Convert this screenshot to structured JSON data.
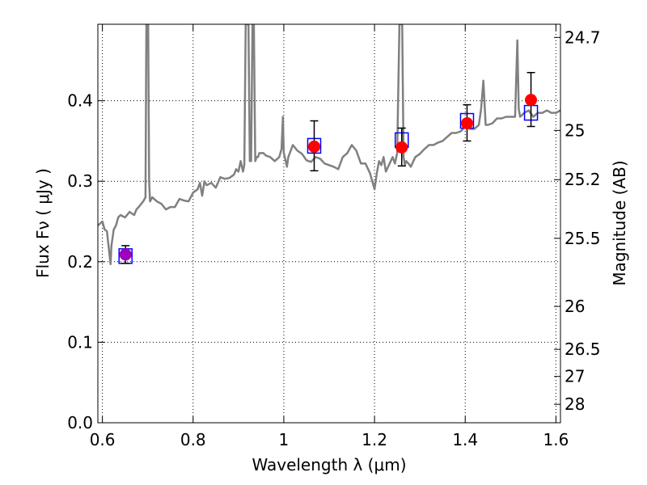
{
  "chart_data": {
    "type": "line",
    "xlabel": "Wavelength  λ (μm)",
    "ylabel": "Flux  Fν  ( μJy )",
    "y2label": "Magnitude (AB)",
    "xlim": [
      0.59,
      1.61
    ],
    "ylim": [
      0.0,
      0.495
    ],
    "x_ticks": [
      "0.6",
      "0.8",
      "1",
      "1.2",
      "1.4",
      "1.6"
    ],
    "x_tick_values": [
      0.6,
      0.8,
      1.0,
      1.2,
      1.4,
      1.6
    ],
    "y_ticks": [
      "0.0",
      "0.1",
      "0.2",
      "0.3",
      "0.4"
    ],
    "y_tick_values": [
      0.0,
      0.1,
      0.2,
      0.3,
      0.4
    ],
    "y2_ticks": [
      "24.7",
      "25",
      "25.2",
      "25.5",
      "26",
      "26.5",
      "27",
      "28"
    ],
    "y2_tick_values": [
      24.7,
      25.0,
      25.2,
      25.5,
      26.0,
      26.5,
      27.0,
      28.0
    ],
    "grid": true,
    "colors": {
      "model": "#808080",
      "observed": "#ff0000",
      "observed_first": "#a000c0",
      "model_box": "#0000ff",
      "errorbar": "#000000",
      "grid": "#000000"
    },
    "model_spectrum": {
      "x": [
        0.59,
        0.6,
        0.605,
        0.61,
        0.618,
        0.62,
        0.625,
        0.63,
        0.635,
        0.64,
        0.65,
        0.66,
        0.665,
        0.67,
        0.675,
        0.68,
        0.69,
        0.695,
        0.697,
        0.699,
        0.701,
        0.703,
        0.705,
        0.71,
        0.72,
        0.73,
        0.74,
        0.75,
        0.76,
        0.77,
        0.78,
        0.79,
        0.8,
        0.81,
        0.815,
        0.82,
        0.825,
        0.83,
        0.84,
        0.85,
        0.86,
        0.87,
        0.88,
        0.89,
        0.895,
        0.9,
        0.905,
        0.91,
        0.913,
        0.916,
        0.919,
        0.922,
        0.925,
        0.928,
        0.931,
        0.934,
        0.937,
        0.94,
        0.943,
        0.946,
        0.95,
        0.955,
        0.96,
        0.97,
        0.98,
        0.99,
        0.995,
        0.998,
        1.0,
        1.003,
        1.007,
        1.01,
        1.02,
        1.03,
        1.04,
        1.05,
        1.06,
        1.07,
        1.08,
        1.09,
        1.1,
        1.11,
        1.12,
        1.13,
        1.14,
        1.15,
        1.16,
        1.17,
        1.18,
        1.19,
        1.195,
        1.2,
        1.205,
        1.21,
        1.215,
        1.22,
        1.225,
        1.23,
        1.24,
        1.245,
        1.25,
        1.255,
        1.258,
        1.261,
        1.264,
        1.267,
        1.27,
        1.275,
        1.28,
        1.29,
        1.3,
        1.31,
        1.32,
        1.33,
        1.34,
        1.35,
        1.36,
        1.37,
        1.38,
        1.39,
        1.4,
        1.41,
        1.42,
        1.43,
        1.435,
        1.44,
        1.445,
        1.45,
        1.46,
        1.47,
        1.48,
        1.49,
        1.5,
        1.51,
        1.515,
        1.518,
        1.521,
        1.525,
        1.53,
        1.54,
        1.55,
        1.56,
        1.57,
        1.58,
        1.59,
        1.6,
        1.61
      ],
      "y": [
        0.245,
        0.25,
        0.24,
        0.238,
        0.197,
        0.22,
        0.24,
        0.245,
        0.255,
        0.258,
        0.255,
        0.262,
        0.26,
        0.258,
        0.265,
        0.268,
        0.275,
        0.28,
        0.495,
        0.495,
        0.495,
        0.3,
        0.275,
        0.28,
        0.275,
        0.272,
        0.265,
        0.268,
        0.268,
        0.278,
        0.276,
        0.275,
        0.286,
        0.29,
        0.298,
        0.282,
        0.3,
        0.295,
        0.298,
        0.292,
        0.305,
        0.303,
        0.304,
        0.308,
        0.315,
        0.312,
        0.325,
        0.312,
        0.32,
        0.495,
        0.495,
        0.495,
        0.325,
        0.325,
        0.495,
        0.495,
        0.325,
        0.33,
        0.33,
        0.335,
        0.335,
        0.335,
        0.332,
        0.33,
        0.325,
        0.33,
        0.34,
        0.38,
        0.335,
        0.328,
        0.318,
        0.33,
        0.345,
        0.338,
        0.334,
        0.326,
        0.324,
        0.33,
        0.328,
        0.322,
        0.32,
        0.318,
        0.315,
        0.33,
        0.335,
        0.345,
        0.338,
        0.322,
        0.322,
        0.31,
        0.3,
        0.29,
        0.31,
        0.325,
        0.32,
        0.33,
        0.312,
        0.318,
        0.33,
        0.322,
        0.335,
        0.495,
        0.495,
        0.495,
        0.33,
        0.32,
        0.325,
        0.322,
        0.318,
        0.33,
        0.334,
        0.34,
        0.345,
        0.345,
        0.348,
        0.35,
        0.355,
        0.36,
        0.36,
        0.362,
        0.368,
        0.365,
        0.365,
        0.37,
        0.39,
        0.425,
        0.37,
        0.37,
        0.372,
        0.378,
        0.378,
        0.38,
        0.38,
        0.38,
        0.475,
        0.39,
        0.38,
        0.382,
        0.385,
        0.388,
        0.38,
        0.385,
        0.385,
        0.388,
        0.385,
        0.385,
        0.388
      ]
    },
    "model_boxes": {
      "x": [
        0.651,
        1.067,
        1.26,
        1.404,
        1.545
      ],
      "y": [
        0.207,
        0.344,
        0.351,
        0.375,
        0.385
      ]
    },
    "observed": {
      "x": [
        0.651,
        1.067,
        1.26,
        1.404,
        1.545
      ],
      "y": [
        0.209,
        0.343,
        0.342,
        0.372,
        0.401
      ],
      "yerr_low": [
        0.011,
        0.03,
        0.023,
        0.022,
        0.033
      ],
      "yerr_high": [
        0.011,
        0.032,
        0.024,
        0.023,
        0.034
      ]
    }
  }
}
